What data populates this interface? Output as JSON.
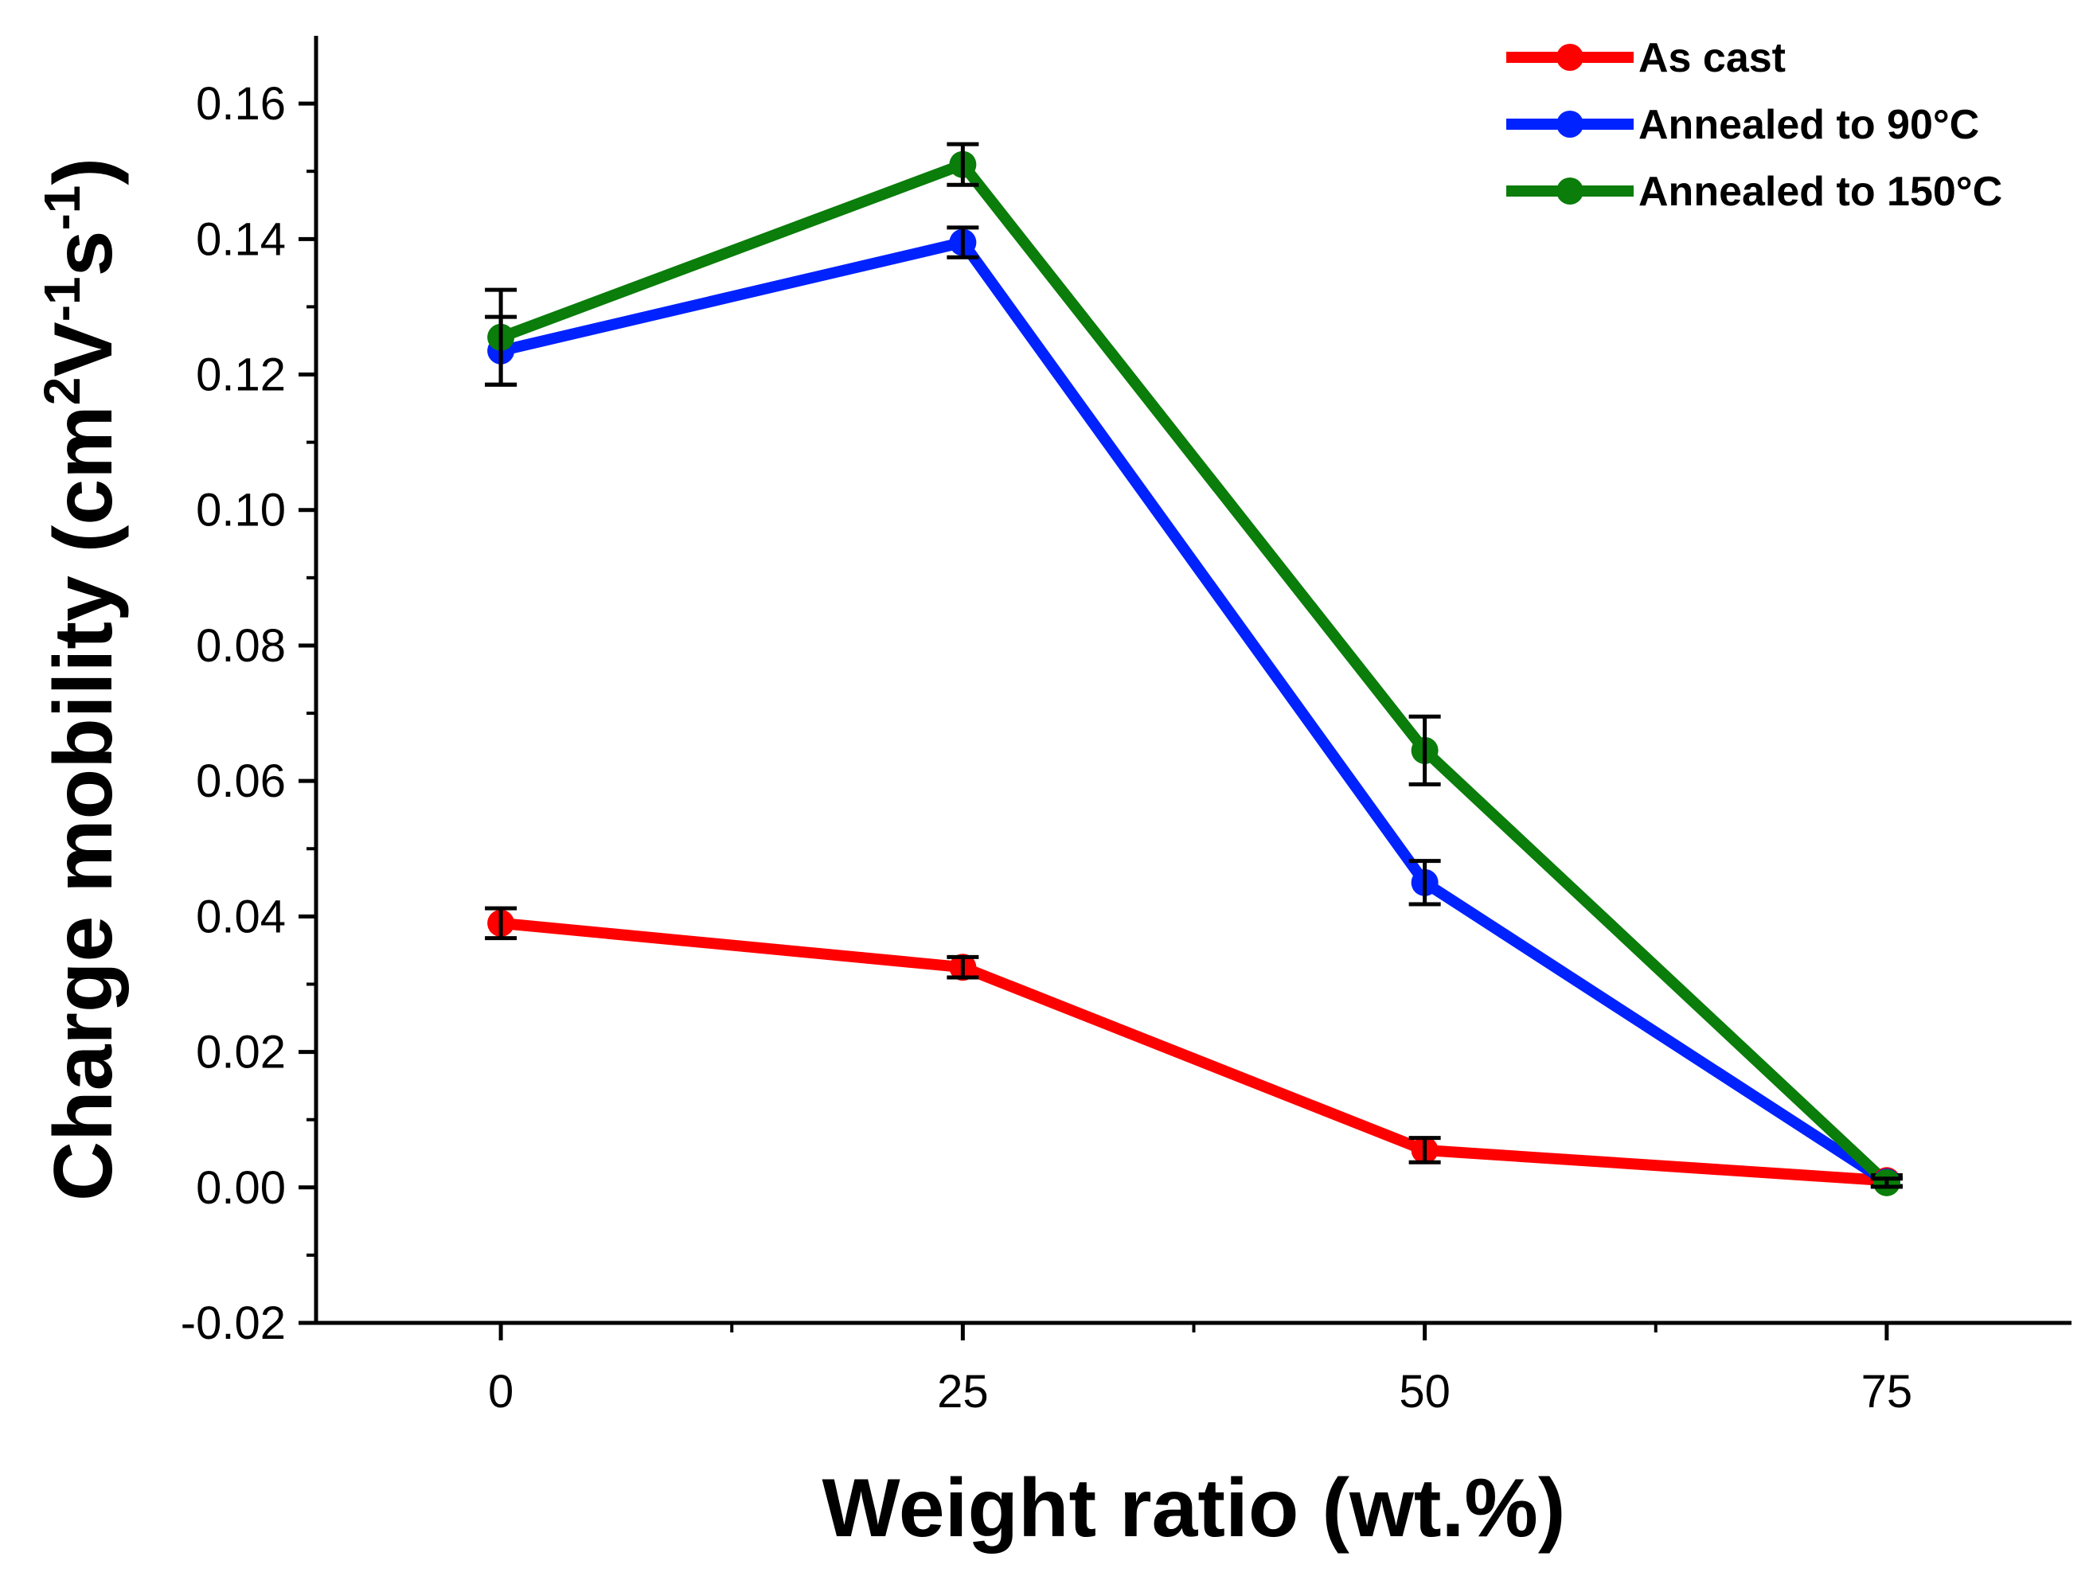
{
  "chart_data": {
    "type": "line",
    "title": "",
    "xlabel": "Weight ratio (wt.%)",
    "ylabel": {
      "prefix": "Charge mobility (cm",
      "sup1": "2",
      "mid1": "V",
      "sup2": "-1",
      "mid2": "s",
      "sup3": "-1",
      "suffix": ")"
    },
    "xlim": [
      -10,
      85
    ],
    "ylim": [
      -0.02,
      0.17
    ],
    "x_ticks": [
      0,
      25,
      50,
      75
    ],
    "x_tick_labels": [
      "0",
      "25",
      "50",
      "75"
    ],
    "x_minor_ticks": [
      12.5,
      37.5,
      62.5
    ],
    "y_ticks": [
      -0.02,
      0.0,
      0.02,
      0.04,
      0.06,
      0.08,
      0.1,
      0.12,
      0.14,
      0.16
    ],
    "y_tick_labels": [
      "-0.02",
      "0.00",
      "0.02",
      "0.04",
      "0.06",
      "0.08",
      "0.10",
      "0.12",
      "0.14",
      "0.16"
    ],
    "grid": false,
    "legend_position": "top-right",
    "x": [
      0,
      25,
      50,
      75
    ],
    "series": [
      {
        "name": "As cast",
        "color": "#ff0000",
        "values": [
          0.039,
          0.0325,
          0.0055,
          0.001
        ],
        "errors": [
          0.0022,
          0.0015,
          0.0018,
          0.0008
        ]
      },
      {
        "name": "Annealed to 90°C",
        "color": "#0022ff",
        "values": [
          0.1235,
          0.1395,
          0.045,
          0.0008
        ],
        "errors": [
          0.005,
          0.0022,
          0.0032,
          0.0006
        ]
      },
      {
        "name": "Annealed to 150°C",
        "color": "#0a7d0a",
        "values": [
          0.1255,
          0.151,
          0.0645,
          0.0007
        ],
        "errors": [
          0.007,
          0.003,
          0.005,
          0.0006
        ]
      }
    ]
  }
}
